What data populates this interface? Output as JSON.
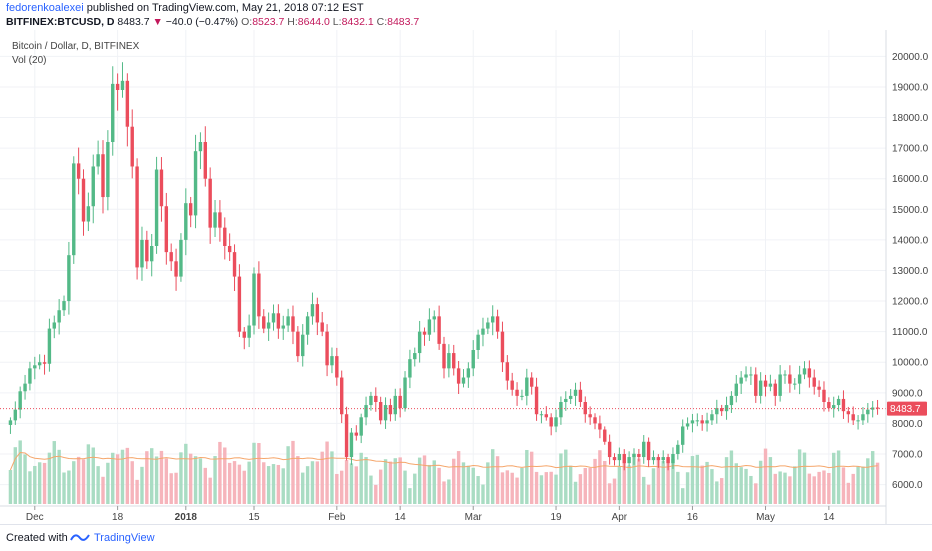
{
  "header": {
    "author": "fedorenkoalexei",
    "published_text": "published on TradingView.com, May 21, 2018 07:12 EST",
    "symbol": "BITFINEX:BTCUSD, D",
    "last": "8483.7",
    "change": "−40.0 (−0.47%)",
    "open_label": "O:",
    "open_val": "8523.7",
    "high_label": "H:",
    "high_val": "8644.0",
    "low_label": "L:",
    "low_val": "8432.1",
    "close_label": "C:",
    "close_val": "8483.7"
  },
  "legend": {
    "title": "Bitcoin / Dollar, D, BITFINEX",
    "volume": "Vol (20)"
  },
  "footer": {
    "created_with": "Created with",
    "brand": "TradingView"
  },
  "colors": {
    "up": "#53b987",
    "down": "#eb4d5c",
    "vol_up": "#a9dcc3",
    "vol_down": "#f6b4bb",
    "ma": "#f5a66b",
    "price_line": "#eb4d5c"
  },
  "chart_data": {
    "type": "candlestick",
    "price_axis_ticks": [
      6000,
      7000,
      8000,
      9000,
      10000,
      11000,
      12000,
      13000,
      14000,
      15000,
      16000,
      17000,
      18000,
      19000,
      20000
    ],
    "ylim": [
      5300,
      20600
    ],
    "last_price_label": "8483.7",
    "x_ticks": [
      {
        "label": "Dec",
        "index": 5
      },
      {
        "label": "18",
        "index": 22
      },
      {
        "label": "2018",
        "index": 36
      },
      {
        "label": "15",
        "index": 50
      },
      {
        "label": "Feb",
        "index": 67
      },
      {
        "label": "14",
        "index": 80
      },
      {
        "label": "Mar",
        "index": 95
      },
      {
        "label": "19",
        "index": 112
      },
      {
        "label": "Apr",
        "index": 125
      },
      {
        "label": "16",
        "index": 140
      },
      {
        "label": "May",
        "index": 155
      },
      {
        "label": "14",
        "index": 168
      }
    ],
    "closes": [
      8100,
      8450,
      9050,
      9300,
      9800,
      9900,
      10000,
      9950,
      11100,
      11300,
      11700,
      12000,
      13500,
      16500,
      16000,
      14600,
      15100,
      16400,
      16800,
      15400,
      17200,
      19100,
      18900,
      19200,
      17700,
      16400,
      13100,
      14000,
      13300,
      13800,
      16300,
      15100,
      13600,
      13300,
      12800,
      14000,
      15200,
      14800,
      16900,
      17200,
      16000,
      14400,
      14900,
      14400,
      13800,
      13600,
      12800,
      11000,
      10800,
      11200,
      12900,
      11500,
      11100,
      11300,
      11600,
      11100,
      11200,
      11500,
      11000,
      10200,
      10900,
      11500,
      11900,
      11300,
      11000,
      9900,
      10200,
      9500,
      8300,
      6900,
      7700,
      7600,
      8200,
      8600,
      8900,
      8700,
      8100,
      8600,
      8300,
      8900,
      8500,
      9500,
      10100,
      10300,
      11000,
      10900,
      11400,
      11500,
      10600,
      9800,
      10300,
      9800,
      9300,
      9500,
      9800,
      10400,
      10900,
      11100,
      11300,
      11500,
      11000,
      10000,
      9400,
      9100,
      8900,
      8900,
      9500,
      9200,
      8300,
      8300,
      8200,
      7900,
      8200,
      8700,
      8800,
      8900,
      9100,
      8700,
      8300,
      8200,
      8000,
      7800,
      7400,
      6900,
      6800,
      7000,
      6700,
      6900,
      7000,
      6900,
      7400,
      6800,
      6900,
      6800,
      6900,
      6700,
      7000,
      7300,
      7900,
      8000,
      8100,
      8100,
      8000,
      8100,
      8300,
      8500,
      8400,
      8600,
      8900,
      9300,
      9500,
      9600,
      9600,
      8900,
      9400,
      9200,
      9300,
      8900,
      9600,
      9600,
      9300,
      9300,
      9600,
      9800,
      9500,
      9200,
      9100,
      8700,
      8500,
      8600,
      8800,
      8400,
      8300,
      8100,
      8100,
      8300,
      8450,
      8520,
      8484
    ]
  }
}
